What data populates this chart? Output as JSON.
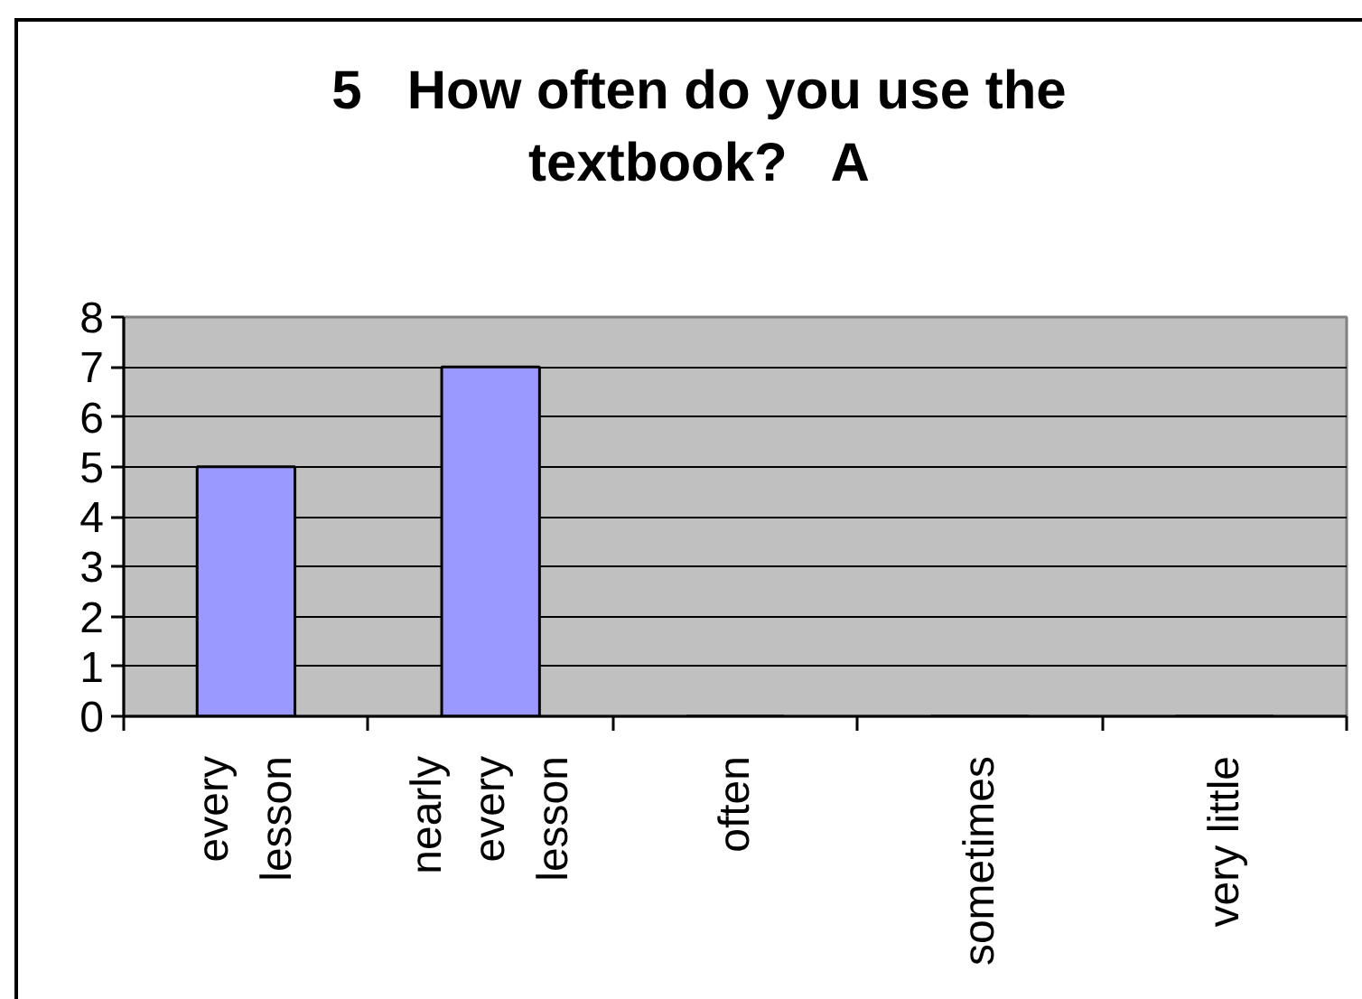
{
  "chart_data": {
    "type": "bar",
    "title": "5   How often do you use the textbook?   A",
    "categories": [
      "every lesson",
      "nearly every lesson",
      "often",
      "sometimes",
      "very little"
    ],
    "values": [
      5,
      7,
      0,
      0,
      0
    ],
    "color": "#9999ff",
    "ylim": [
      0,
      8
    ],
    "yticks": [
      0,
      1,
      2,
      3,
      4,
      5,
      6,
      7,
      8
    ],
    "grid": "y"
  }
}
